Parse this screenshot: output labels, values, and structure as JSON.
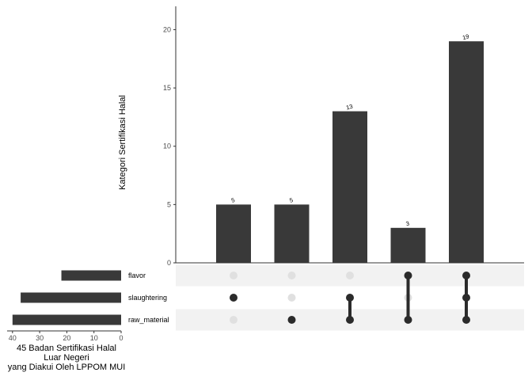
{
  "chart_data": {
    "type": "bar",
    "subtype": "upset",
    "ylabel": "Kategori Sertifikasi Halal",
    "ylim": [
      0,
      22
    ],
    "y_ticks": [
      0,
      5,
      10,
      15,
      20
    ],
    "sets": [
      "flavor",
      "slaughtering",
      "raw_material"
    ],
    "set_sizes": {
      "xlabel_lines": [
        "45 Badan Sertifikasi Halal",
        "Luar Negeri",
        "yang Diakui Oleh LPPOM MUI"
      ],
      "values": [
        22,
        37,
        40
      ],
      "x_ticks": [
        40,
        30,
        20,
        10,
        0
      ],
      "xlim": [
        42,
        0
      ]
    },
    "intersections": [
      {
        "sets": [
          "slaughtering"
        ],
        "value": 5,
        "label": "5"
      },
      {
        "sets": [
          "raw_material"
        ],
        "value": 5,
        "label": "5"
      },
      {
        "sets": [
          "slaughtering",
          "raw_material"
        ],
        "value": 13,
        "label": "13"
      },
      {
        "sets": [
          "flavor",
          "raw_material"
        ],
        "value": 3,
        "label": "3"
      },
      {
        "sets": [
          "flavor",
          "slaughtering",
          "raw_material"
        ],
        "value": 19,
        "label": "19"
      }
    ],
    "colors": {
      "bar": "#393939",
      "dot_active": "#2b2b2b",
      "dot_inactive": "#e0e0e0",
      "row_stripe": "#f2f2f2",
      "axis": "#333333",
      "tick_text": "#4d4d4d"
    }
  }
}
